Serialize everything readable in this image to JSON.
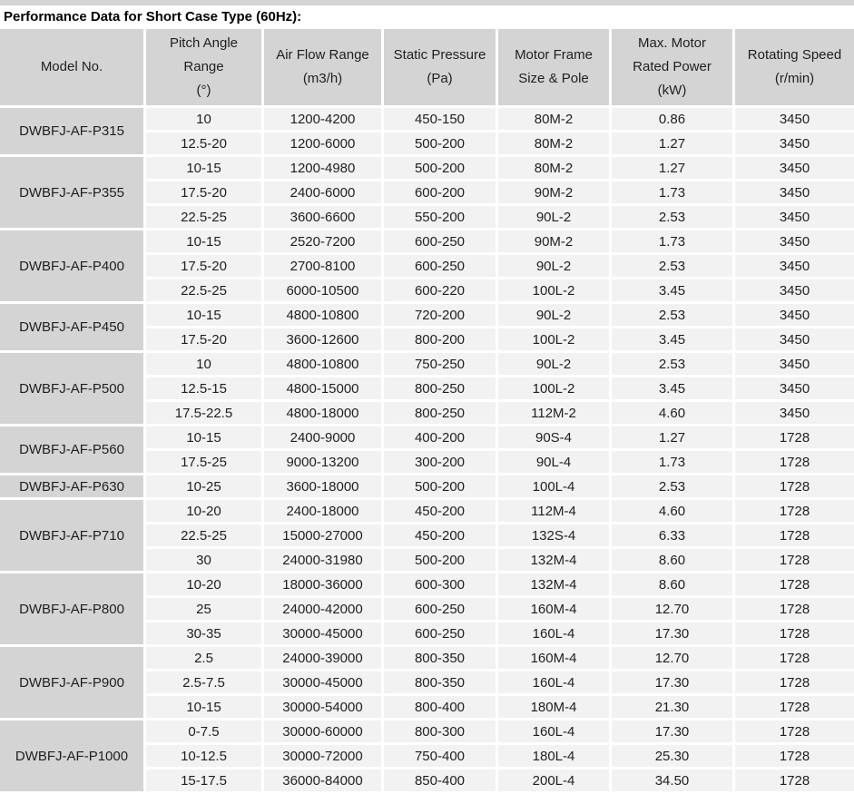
{
  "title": "Performance Data for Short Case Type (60Hz):",
  "colors": {
    "header_bg": "#d4d4d4",
    "cell_bg": "#f2f2f2",
    "gap_color": "#ffffff",
    "text_color": "#1f1f1f"
  },
  "table": {
    "columns": [
      {
        "key": "model",
        "label": "Model No."
      },
      {
        "key": "pitch-angle",
        "label": "Pitch Angle\nRange\n(°)"
      },
      {
        "key": "air-flow",
        "label": "Air Flow Range\n(m3/h)"
      },
      {
        "key": "static-pressure",
        "label": "Static Pressure\n(Pa)"
      },
      {
        "key": "motor-frame",
        "label": "Motor Frame\nSize & Pole"
      },
      {
        "key": "rated-power",
        "label": "Max. Motor\nRated Power\n(kW)"
      },
      {
        "key": "rotating-speed",
        "label": "Rotating Speed\n(r/min)"
      }
    ],
    "groups": [
      {
        "model": "DWBFJ-AF-P315",
        "rows": [
          [
            "10",
            "1200-4200",
            "450-150",
            "80M-2",
            "0.86",
            "3450"
          ],
          [
            "12.5-20",
            "1200-6000",
            "500-200",
            "80M-2",
            "1.27",
            "3450"
          ]
        ]
      },
      {
        "model": "DWBFJ-AF-P355",
        "rows": [
          [
            "10-15",
            "1200-4980",
            "500-200",
            "80M-2",
            "1.27",
            "3450"
          ],
          [
            "17.5-20",
            "2400-6000",
            "600-200",
            "90M-2",
            "1.73",
            "3450"
          ],
          [
            "22.5-25",
            "3600-6600",
            "550-200",
            "90L-2",
            "2.53",
            "3450"
          ]
        ]
      },
      {
        "model": "DWBFJ-AF-P400",
        "rows": [
          [
            "10-15",
            "2520-7200",
            "600-250",
            "90M-2",
            "1.73",
            "3450"
          ],
          [
            "17.5-20",
            "2700-8100",
            "600-250",
            "90L-2",
            "2.53",
            "3450"
          ],
          [
            "22.5-25",
            "6000-10500",
            "600-220",
            "100L-2",
            "3.45",
            "3450"
          ]
        ]
      },
      {
        "model": "DWBFJ-AF-P450",
        "rows": [
          [
            "10-15",
            "4800-10800",
            "720-200",
            "90L-2",
            "2.53",
            "3450"
          ],
          [
            "17.5-20",
            "3600-12600",
            "800-200",
            "100L-2",
            "3.45",
            "3450"
          ]
        ]
      },
      {
        "model": "DWBFJ-AF-P500",
        "rows": [
          [
            "10",
            "4800-10800",
            "750-250",
            "90L-2",
            "2.53",
            "3450"
          ],
          [
            "12.5-15",
            "4800-15000",
            "800-250",
            "100L-2",
            "3.45",
            "3450"
          ],
          [
            "17.5-22.5",
            "4800-18000",
            "800-250",
            "112M-2",
            "4.60",
            "3450"
          ]
        ]
      },
      {
        "model": "DWBFJ-AF-P560",
        "rows": [
          [
            "10-15",
            "2400-9000",
            "400-200",
            "90S-4",
            "1.27",
            "1728"
          ],
          [
            "17.5-25",
            "9000-13200",
            "300-200",
            "90L-4",
            "1.73",
            "1728"
          ]
        ]
      },
      {
        "model": "DWBFJ-AF-P630",
        "rows": [
          [
            "10-25",
            "3600-18000",
            "500-200",
            "100L-4",
            "2.53",
            "1728"
          ]
        ]
      },
      {
        "model": "DWBFJ-AF-P710",
        "rows": [
          [
            "10-20",
            "2400-18000",
            "450-200",
            "112M-4",
            "4.60",
            "1728"
          ],
          [
            "22.5-25",
            "15000-27000",
            "450-200",
            "132S-4",
            "6.33",
            "1728"
          ],
          [
            "30",
            "24000-31980",
            "500-200",
            "132M-4",
            "8.60",
            "1728"
          ]
        ]
      },
      {
        "model": "DWBFJ-AF-P800",
        "rows": [
          [
            "10-20",
            "18000-36000",
            "600-300",
            "132M-4",
            "8.60",
            "1728"
          ],
          [
            "25",
            "24000-42000",
            "600-250",
            "160M-4",
            "12.70",
            "1728"
          ],
          [
            "30-35",
            "30000-45000",
            "600-250",
            "160L-4",
            "17.30",
            "1728"
          ]
        ]
      },
      {
        "model": "DWBFJ-AF-P900",
        "rows": [
          [
            "2.5",
            "24000-39000",
            "800-350",
            "160M-4",
            "12.70",
            "1728"
          ],
          [
            "2.5-7.5",
            "30000-45000",
            "800-350",
            "160L-4",
            "17.30",
            "1728"
          ],
          [
            "10-15",
            "30000-54000",
            "800-400",
            "180M-4",
            "21.30",
            "1728"
          ]
        ]
      },
      {
        "model": "DWBFJ-AF-P1000",
        "rows": [
          [
            "0-7.5",
            "30000-60000",
            "800-300",
            "160L-4",
            "17.30",
            "1728"
          ],
          [
            "10-12.5",
            "30000-72000",
            "750-400",
            "180L-4",
            "25.30",
            "1728"
          ],
          [
            "15-17.5",
            "36000-84000",
            "850-400",
            "200L-4",
            "34.50",
            "1728"
          ]
        ]
      }
    ]
  }
}
